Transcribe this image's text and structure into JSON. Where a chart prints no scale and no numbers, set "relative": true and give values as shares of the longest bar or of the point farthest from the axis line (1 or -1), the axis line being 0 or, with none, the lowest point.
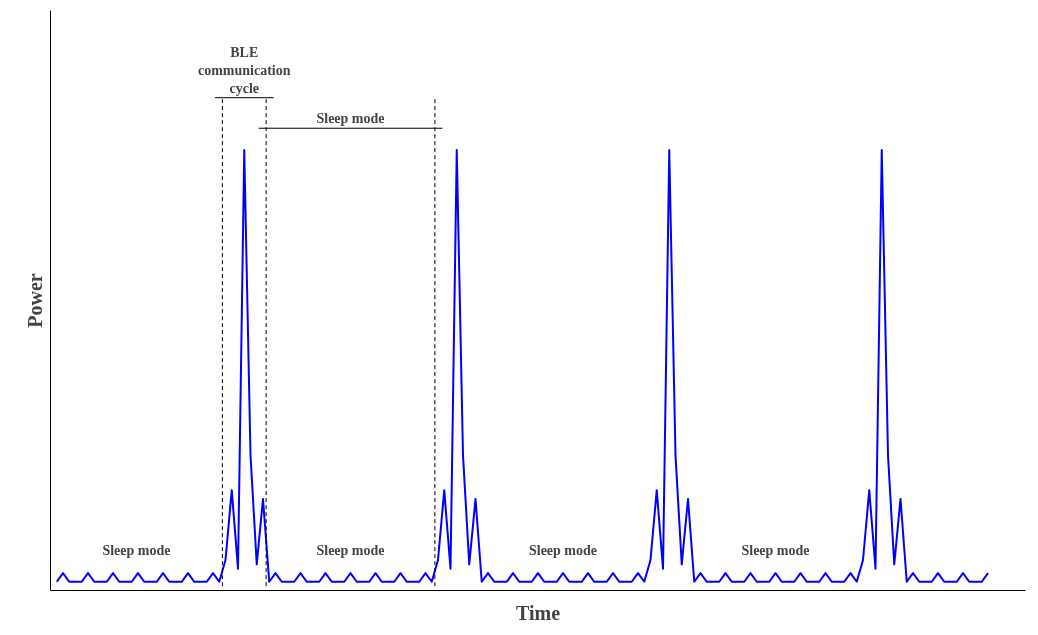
{
  "chart_data": {
    "type": "line",
    "relative": true,
    "xlabel": "Time",
    "ylabel": "Power",
    "grid": false,
    "marker": "none",
    "line_style": "solid",
    "categories": [
      null,
      null,
      null,
      null,
      null,
      null,
      null,
      null,
      null,
      null,
      null,
      null,
      null,
      null,
      null,
      null,
      null,
      null,
      null,
      null,
      null,
      null,
      null,
      null,
      null,
      null,
      null,
      null,
      null,
      null,
      null,
      null,
      null,
      null,
      null,
      null,
      null,
      null,
      null,
      null,
      null,
      null,
      null,
      null,
      null,
      null,
      null,
      null,
      null,
      null,
      null,
      null,
      null,
      null,
      null,
      null,
      null,
      null,
      null,
      null,
      null,
      null,
      null,
      null,
      null,
      null,
      null,
      null,
      null,
      null,
      null,
      null,
      null,
      null,
      null,
      null,
      null,
      null,
      null,
      null,
      null,
      null,
      null,
      null,
      null,
      null,
      null,
      null,
      null,
      null,
      null,
      null,
      null,
      null,
      null,
      null,
      null,
      null,
      null,
      null,
      null,
      null,
      null,
      null,
      null,
      null,
      null,
      null,
      null,
      null,
      null,
      null,
      null,
      null,
      null,
      null,
      null,
      null,
      null,
      null,
      null,
      null,
      null,
      null,
      null,
      null,
      null,
      null,
      null,
      null,
      null,
      null,
      null,
      null,
      null,
      null,
      null,
      null,
      null,
      null,
      null,
      null,
      null,
      null,
      null,
      null,
      null,
      null,
      null,
      null
    ],
    "series": [
      {
        "color": "#0000ff",
        "values": [
          0.01,
          0.03,
          0.01,
          0.01,
          0.01,
          0.03,
          0.01,
          0.01,
          0.01,
          0.03,
          0.01,
          0.01,
          0.01,
          0.03,
          0.01,
          0.01,
          0.01,
          0.03,
          0.01,
          0.01,
          0.01,
          0.03,
          0.01,
          0.01,
          0.01,
          0.03,
          0.01,
          0.06,
          0.22,
          0.04,
          1,
          0.3,
          0.05,
          0.2,
          0.01,
          0.03,
          0.01,
          0.01,
          0.01,
          0.03,
          0.01,
          0.01,
          0.01,
          0.03,
          0.01,
          0.01,
          0.01,
          0.03,
          0.01,
          0.01,
          0.01,
          0.03,
          0.01,
          0.01,
          0.01,
          0.03,
          0.01,
          0.01,
          0.01,
          0.03,
          0.01,
          0.06,
          0.22,
          0.04,
          1,
          0.3,
          0.05,
          0.2,
          0.01,
          0.03,
          0.01,
          0.01,
          0.01,
          0.03,
          0.01,
          0.01,
          0.01,
          0.03,
          0.01,
          0.01,
          0.01,
          0.03,
          0.01,
          0.01,
          0.01,
          0.03,
          0.01,
          0.01,
          0.01,
          0.03,
          0.01,
          0.01,
          0.01,
          0.03,
          0.01,
          0.06,
          0.22,
          0.04,
          1,
          0.3,
          0.05,
          0.2,
          0.01,
          0.03,
          0.01,
          0.01,
          0.01,
          0.03,
          0.01,
          0.01,
          0.01,
          0.03,
          0.01,
          0.01,
          0.01,
          0.03,
          0.01,
          0.01,
          0.01,
          0.03,
          0.01,
          0.01,
          0.01,
          0.03,
          0.01,
          0.01,
          0.01,
          0.03,
          0.01,
          0.06,
          0.22,
          0.04,
          1,
          0.3,
          0.05,
          0.2,
          0.01,
          0.03,
          0.01,
          0.01,
          0.01,
          0.03,
          0.01,
          0.01,
          0.01,
          0.03,
          0.01,
          0.01,
          0.01,
          0.03
        ]
      }
    ],
    "annotations": [
      "BLE communication cycle",
      "Sleep mode",
      "Sleep mode",
      "Sleep mode",
      "Sleep mode",
      "Sleep mode"
    ]
  }
}
